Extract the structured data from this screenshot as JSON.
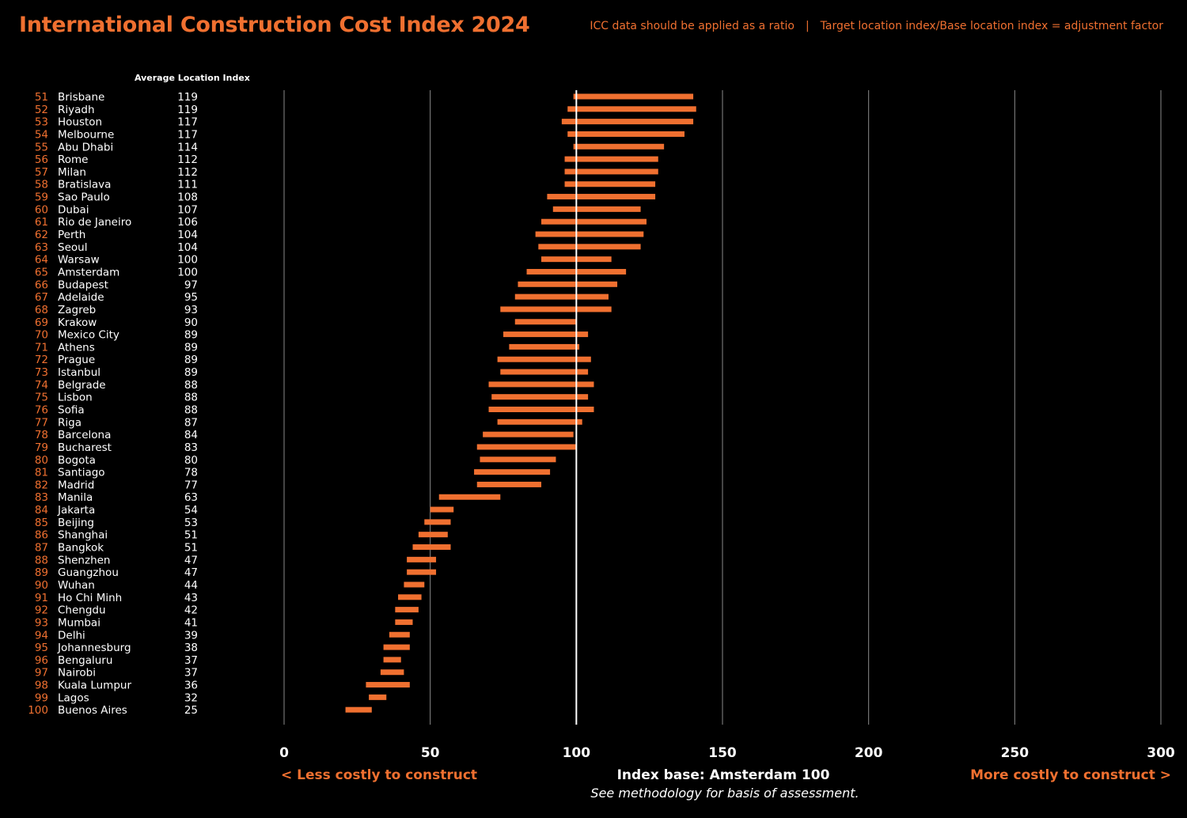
{
  "header": {
    "title": "International Construction Cost Index 2024",
    "note_left": "ICC data should be applied as a ratio",
    "note_separator": "|",
    "note_right": "Target location index/Base location index = adjustment factor"
  },
  "footer": {
    "less_costly": "< Less costly to construct",
    "more_costly": "More costly to construct >",
    "index_base": "Index base: Amsterdam 100",
    "methodology": "See methodology for basis of assessment."
  },
  "chart_data": {
    "type": "range-bar",
    "title": "International Construction Cost Index 2024",
    "column_header": "Average Location Index",
    "xlim": [
      0,
      300
    ],
    "xticks": [
      0,
      50,
      100,
      150,
      200,
      250,
      300
    ],
    "baseline": 100,
    "grid": true,
    "rows": [
      {
        "rank": "51",
        "city": "Brisbane",
        "index": "119",
        "low": 99,
        "high": 140
      },
      {
        "rank": "52",
        "city": "Riyadh",
        "index": "119",
        "low": 97,
        "high": 141
      },
      {
        "rank": "53",
        "city": "Houston",
        "index": "117",
        "low": 95,
        "high": 140
      },
      {
        "rank": "54",
        "city": "Melbourne",
        "index": "117",
        "low": 97,
        "high": 137
      },
      {
        "rank": "55",
        "city": "Abu Dhabi",
        "index": "114",
        "low": 99,
        "high": 130
      },
      {
        "rank": "56",
        "city": "Rome",
        "index": "112",
        "low": 96,
        "high": 128
      },
      {
        "rank": "57",
        "city": "Milan",
        "index": "112",
        "low": 96,
        "high": 128
      },
      {
        "rank": "58",
        "city": "Bratislava",
        "index": "111",
        "low": 96,
        "high": 127
      },
      {
        "rank": "59",
        "city": "Sao Paulo",
        "index": "108",
        "low": 90,
        "high": 127
      },
      {
        "rank": "60",
        "city": "Dubai",
        "index": "107",
        "low": 92,
        "high": 122
      },
      {
        "rank": "61",
        "city": "Rio de Janeiro",
        "index": "106",
        "low": 88,
        "high": 124
      },
      {
        "rank": "62",
        "city": "Perth",
        "index": "104",
        "low": 86,
        "high": 123
      },
      {
        "rank": "63",
        "city": "Seoul",
        "index": "104",
        "low": 87,
        "high": 122
      },
      {
        "rank": "64",
        "city": "Warsaw",
        "index": "100",
        "low": 88,
        "high": 112
      },
      {
        "rank": "65",
        "city": "Amsterdam",
        "index": "100",
        "low": 83,
        "high": 117
      },
      {
        "rank": "66",
        "city": "Budapest",
        "index": "97",
        "low": 80,
        "high": 114
      },
      {
        "rank": "67",
        "city": "Adelaide",
        "index": "95",
        "low": 79,
        "high": 111
      },
      {
        "rank": "68",
        "city": "Zagreb",
        "index": "93",
        "low": 74,
        "high": 112
      },
      {
        "rank": "69",
        "city": "Krakow",
        "index": "90",
        "low": 79,
        "high": 100
      },
      {
        "rank": "70",
        "city": "Mexico City",
        "index": "89",
        "low": 75,
        "high": 104
      },
      {
        "rank": "71",
        "city": "Athens",
        "index": "89",
        "low": 77,
        "high": 101
      },
      {
        "rank": "72",
        "city": "Prague",
        "index": "89",
        "low": 73,
        "high": 105
      },
      {
        "rank": "73",
        "city": "Istanbul",
        "index": "89",
        "low": 74,
        "high": 104
      },
      {
        "rank": "74",
        "city": "Belgrade",
        "index": "88",
        "low": 70,
        "high": 106
      },
      {
        "rank": "75",
        "city": "Lisbon",
        "index": "88",
        "low": 71,
        "high": 104
      },
      {
        "rank": "76",
        "city": "Sofia",
        "index": "88",
        "low": 70,
        "high": 106
      },
      {
        "rank": "77",
        "city": "Riga",
        "index": "87",
        "low": 73,
        "high": 102
      },
      {
        "rank": "78",
        "city": "Barcelona",
        "index": "84",
        "low": 68,
        "high": 99
      },
      {
        "rank": "79",
        "city": "Bucharest",
        "index": "83",
        "low": 66,
        "high": 100
      },
      {
        "rank": "80",
        "city": "Bogota",
        "index": "80",
        "low": 67,
        "high": 93
      },
      {
        "rank": "81",
        "city": "Santiago",
        "index": "78",
        "low": 65,
        "high": 91
      },
      {
        "rank": "82",
        "city": "Madrid",
        "index": "77",
        "low": 66,
        "high": 88
      },
      {
        "rank": "83",
        "city": "Manila",
        "index": "63",
        "low": 53,
        "high": 74
      },
      {
        "rank": "84",
        "city": "Jakarta",
        "index": "54",
        "low": 50,
        "high": 58
      },
      {
        "rank": "85",
        "city": "Beijing",
        "index": "53",
        "low": 48,
        "high": 57
      },
      {
        "rank": "86",
        "city": "Shanghai",
        "index": "51",
        "low": 46,
        "high": 56
      },
      {
        "rank": "87",
        "city": "Bangkok",
        "index": "51",
        "low": 44,
        "high": 57
      },
      {
        "rank": "88",
        "city": "Shenzhen",
        "index": "47",
        "low": 42,
        "high": 52
      },
      {
        "rank": "89",
        "city": "Guangzhou",
        "index": "47",
        "low": 42,
        "high": 52
      },
      {
        "rank": "90",
        "city": "Wuhan",
        "index": "44",
        "low": 41,
        "high": 48
      },
      {
        "rank": "91",
        "city": "Ho Chi Minh",
        "index": "43",
        "low": 39,
        "high": 47
      },
      {
        "rank": "92",
        "city": "Chengdu",
        "index": "42",
        "low": 38,
        "high": 46
      },
      {
        "rank": "93",
        "city": "Mumbai",
        "index": "41",
        "low": 38,
        "high": 44
      },
      {
        "rank": "94",
        "city": "Delhi",
        "index": "39",
        "low": 36,
        "high": 43
      },
      {
        "rank": "95",
        "city": "Johannesburg",
        "index": "38",
        "low": 34,
        "high": 43
      },
      {
        "rank": "96",
        "city": "Bengaluru",
        "index": "37",
        "low": 34,
        "high": 40
      },
      {
        "rank": "97",
        "city": "Nairobi",
        "index": "37",
        "low": 33,
        "high": 41
      },
      {
        "rank": "98",
        "city": "Kuala Lumpur",
        "index": "36",
        "low": 28,
        "high": 43
      },
      {
        "rank": "99",
        "city": "Lagos",
        "index": "32",
        "low": 29,
        "high": 35
      },
      {
        "rank": "100",
        "city": "Buenos Aires",
        "index": "25",
        "low": 21,
        "high": 30
      }
    ]
  },
  "colors": {
    "accent": "#f07030",
    "background": "#000000",
    "text": "#ffffff",
    "grid": "#8a8a8a"
  }
}
